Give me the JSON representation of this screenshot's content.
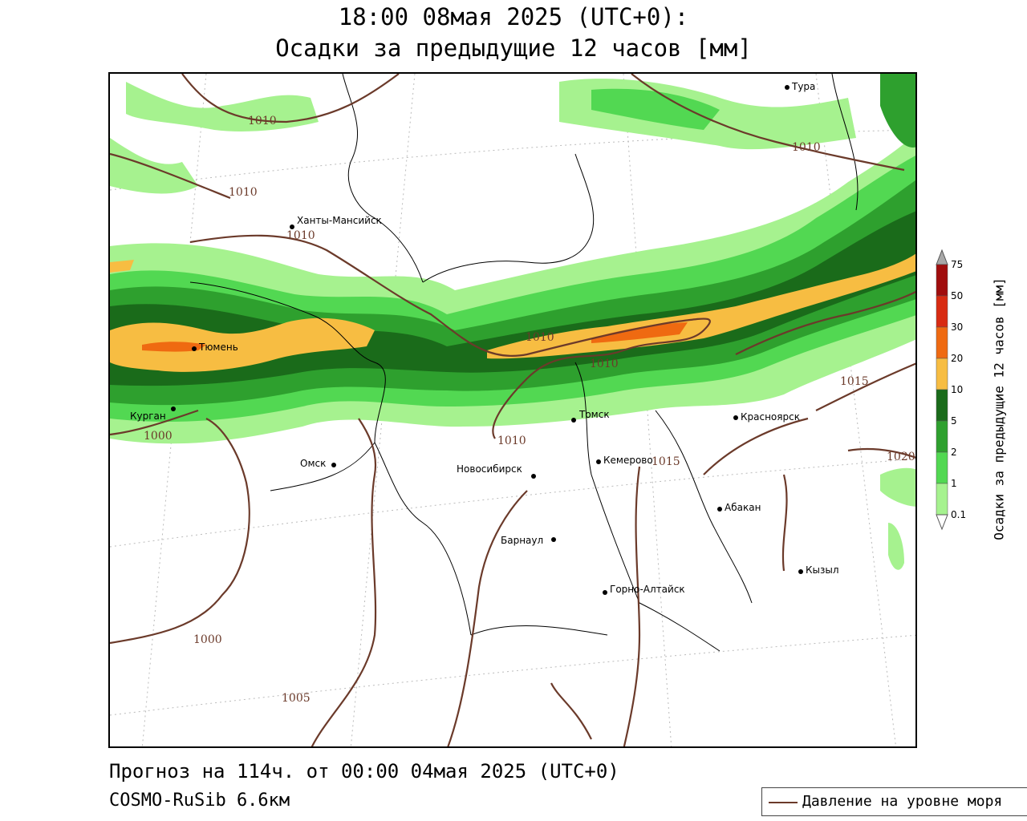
{
  "title": {
    "line1": "18:00 08мая 2025 (UTC+0):",
    "line2": "Осадки за предыдущие 12 часов [мм]"
  },
  "footer": {
    "forecast": "Прогноз на 114ч. от 00:00 04мая 2025 (UTC+0)",
    "model": "COSMO-RuSib 6.6км"
  },
  "legend": {
    "isobar_label": "Давление на уровне моря"
  },
  "colorbar": {
    "title": "Осадки за предыдущие 12 часов [мм]",
    "levels": [
      "0.1",
      "1",
      "2",
      "5",
      "10",
      "20",
      "30",
      "50",
      "75"
    ],
    "colors": [
      "#ffffff",
      "#a6f28f",
      "#52d852",
      "#2ea02e",
      "#1a6b1a",
      "#f7bd42",
      "#ef6a11",
      "#d82b12",
      "#a00d0d",
      "#a8a8a8"
    ]
  },
  "cities": [
    {
      "name": "Тура"
    },
    {
      "name": "Ханты-Мансийск"
    },
    {
      "name": "Тюмень"
    },
    {
      "name": "Курган"
    },
    {
      "name": "Омск"
    },
    {
      "name": "Новосибирск"
    },
    {
      "name": "Томск"
    },
    {
      "name": "Кемерово"
    },
    {
      "name": "Красноярск"
    },
    {
      "name": "Абакан"
    },
    {
      "name": "Барнаул"
    },
    {
      "name": "Горно-Алтайск"
    },
    {
      "name": "Кызыл"
    }
  ],
  "isobars": [
    "1010",
    "1010",
    "1010",
    "1010",
    "1010",
    "1010",
    "1010",
    "1000",
    "1015",
    "1015",
    "1020",
    "1000",
    "1005"
  ],
  "colors": {
    "isobar": "#6b3a2a",
    "precip_light": "#a6f28f",
    "precip_mid": "#52d852",
    "precip_dark": "#2ea02e",
    "precip_darker": "#1a6b1a",
    "precip_orange": "#f7bd42",
    "precip_red": "#ef6a11"
  }
}
